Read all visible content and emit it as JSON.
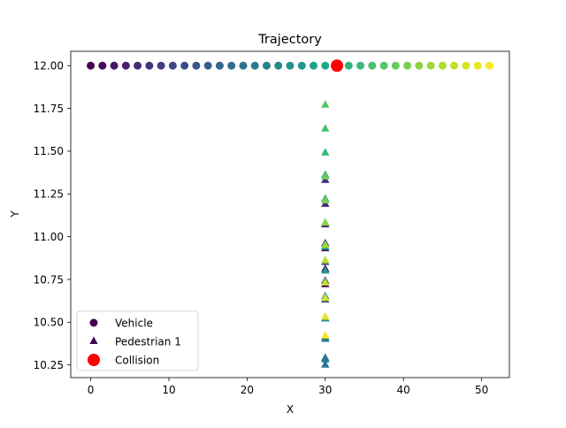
{
  "chart_data": {
    "type": "scatter",
    "title": "Trajectory",
    "xlabel": "X",
    "ylabel": "Y",
    "xlim": [
      -2.55,
      53.55
    ],
    "ylim": [
      10.176,
      12.084
    ],
    "xticks": [
      0,
      10,
      20,
      30,
      40,
      50
    ],
    "yticks": [
      10.25,
      10.5,
      10.75,
      11.0,
      11.25,
      11.5,
      11.75,
      12.0
    ],
    "ytick_labels": [
      "10.25",
      "10.50",
      "10.75",
      "11.00",
      "11.25",
      "11.50",
      "11.75",
      "12.00"
    ],
    "colormap": "viridis",
    "legend_position": "lower-left",
    "legend": [
      {
        "label": "Vehicle",
        "marker": "circle",
        "color": "#440154"
      },
      {
        "label": "Pedestrian 1",
        "marker": "triangle",
        "color": "#440154"
      },
      {
        "label": "Collision",
        "marker": "circle",
        "color": "#ff0000"
      }
    ],
    "series": [
      {
        "name": "Vehicle",
        "marker": "circle",
        "x": [
          0,
          1.5,
          3,
          4.5,
          6,
          7.5,
          9,
          10.5,
          12,
          13.5,
          15,
          16.5,
          18,
          19.5,
          21,
          22.5,
          24,
          25.5,
          27,
          28.5,
          30,
          31.5,
          33,
          34.5,
          36,
          37.5,
          39,
          40.5,
          42,
          43.5,
          45,
          46.5,
          48,
          49.5,
          51
        ],
        "y": [
          12,
          12,
          12,
          12,
          12,
          12,
          12,
          12,
          12,
          12,
          12,
          12,
          12,
          12,
          12,
          12,
          12,
          12,
          12,
          12,
          12,
          12,
          12,
          12,
          12,
          12,
          12,
          12,
          12,
          12,
          12,
          12,
          12,
          12,
          12
        ]
      },
      {
        "name": "Pedestrian 1",
        "marker": "triangle",
        "x": [
          30,
          30,
          30,
          30,
          30,
          30,
          30,
          30,
          30,
          30,
          30,
          30,
          30,
          30,
          30,
          30,
          30,
          30,
          30,
          30,
          30,
          30,
          30,
          30,
          30,
          30,
          30,
          30,
          30,
          30,
          30,
          30,
          30,
          30,
          30
        ],
        "y": [
          10.72,
          10.81,
          10.93,
          11.07,
          11.19,
          11.33,
          10.96,
          10.85,
          10.74,
          10.63,
          10.52,
          10.41,
          10.29,
          10.25,
          10.28,
          10.4,
          10.52,
          10.65,
          10.8,
          10.94,
          11.08,
          11.22,
          11.36,
          11.49,
          11.63,
          11.77,
          11.35,
          11.21,
          11.08,
          10.95,
          10.86,
          10.73,
          10.64,
          10.53,
          10.42
        ]
      },
      {
        "name": "Collision",
        "marker": "circle",
        "x": [
          31.5
        ],
        "y": [
          12
        ]
      }
    ]
  }
}
